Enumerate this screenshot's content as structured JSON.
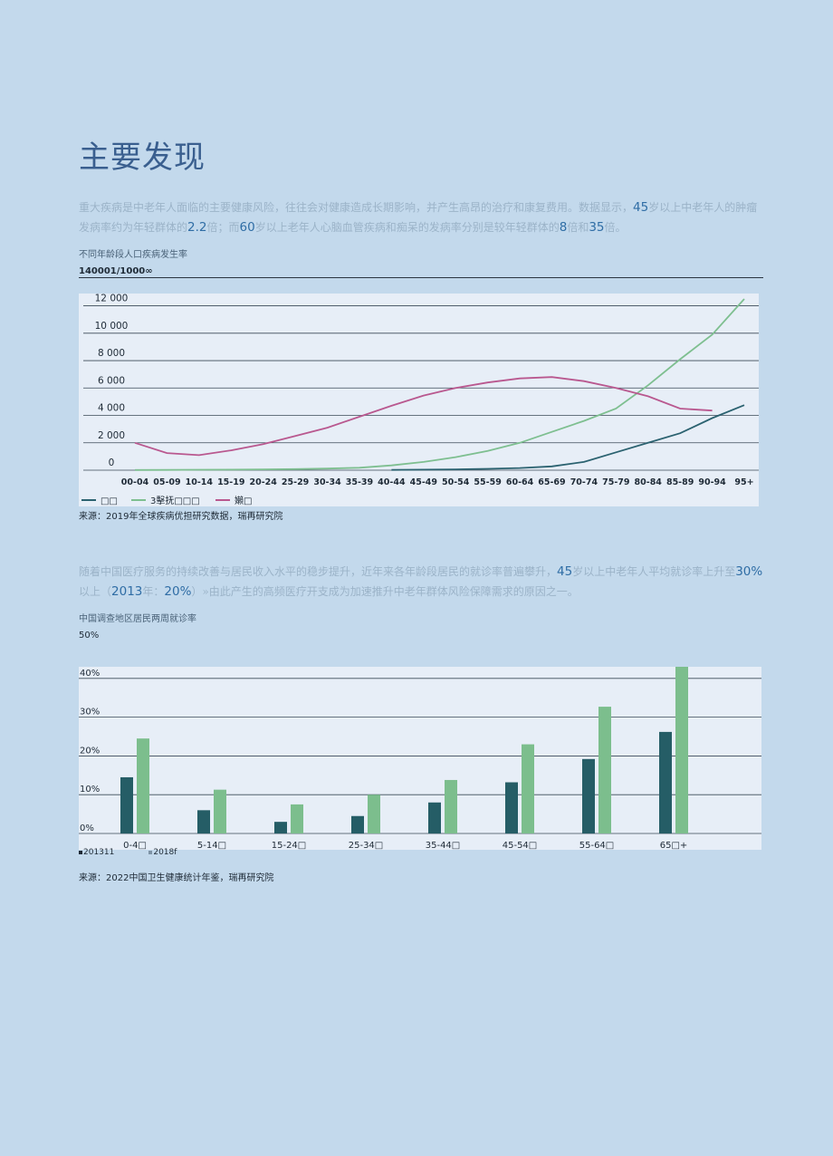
{
  "title": "主要发现",
  "paragraph1": {
    "t1": "重大疾病是中老年人面临的主要健康风险，往往会对健康造成长期影响，并产生高昂的治疗和康复费用。数据显示，",
    "h1": "45",
    "t2": "岁以上中老年人的肿瘤发病率约为年轻群体的",
    "h2": "2.2",
    "t3": "倍；而",
    "h3": "60",
    "t4": "岁以上老年人心脑血管疾病和痴呆的发病率分别是较年轻群体的",
    "h4": "8",
    "t5": "倍和",
    "h5": "35",
    "t6": "倍。"
  },
  "chart1_block": {
    "caption": "不同年龄段人口疾病发生率",
    "unit": "140001/1000∞",
    "source": "来源：2019年全球疾病优担研究数据，瑞再研究院"
  },
  "paragraph2": {
    "t1": "随着中国医疗服务的持续改善与居民收入水平的稳步提升，近年来各年龄段居民的就诊率普遍攀升，",
    "h1": "45",
    "t2": "岁以上中老年人平均就诊率上升至",
    "h2": "30%",
    "t3": "以上（",
    "h3": "2013",
    "t4": "年：",
    "h4": "20%",
    "t5": "）»由此产生的高频医疗开支成为加速推升中老年群体风险保障需求的原因之一。"
  },
  "chart2_block": {
    "caption": "中国调查地区居民两周就诊率",
    "unit": "50%",
    "source": "来源：2022中国卫生健康统计年鉴，瑞再研究院"
  },
  "colors": {
    "series_dark": "#2b6270",
    "series_green": "#7ebf90",
    "series_pink": "#b9588f",
    "grid": "#3b4a57",
    "bar_dark": "#255d66",
    "bar_green": "#7cbe8d"
  },
  "chart_data": [
    {
      "type": "line",
      "title": "不同年龄段人口疾病发生率",
      "categories": [
        "00-04",
        "05-09",
        "10-14",
        "15-19",
        "20-24",
        "25-29",
        "30-34",
        "35-39",
        "40-44",
        "45-49",
        "50-54",
        "55-59",
        "60-64",
        "65-69",
        "70-74",
        "75-79",
        "80-84",
        "85-89",
        "90-94",
        "95+"
      ],
      "y_ticks": [
        "0",
        "2 000",
        "4 000",
        "6 000",
        "8 000",
        "10 000",
        "12 000"
      ],
      "ylim": [
        0,
        12500
      ],
      "grid": true,
      "legend": "bottom-left",
      "series": [
        {
          "name": "□□",
          "values": [
            null,
            null,
            null,
            null,
            null,
            null,
            null,
            null,
            20,
            40,
            60,
            100,
            160,
            280,
            600,
            1300,
            2000,
            2700,
            3800,
            4750
          ]
        },
        {
          "name": "3擊抚□□□",
          "values": [
            10,
            20,
            30,
            40,
            60,
            80,
            120,
            180,
            350,
            600,
            950,
            1400,
            2000,
            2800,
            3600,
            4500,
            6200,
            8100,
            9900,
            12500
          ]
        },
        {
          "name": "嬾□",
          "values": [
            2000,
            1250,
            1100,
            1450,
            1900,
            2500,
            3100,
            3900,
            4700,
            5450,
            6000,
            6400,
            6700,
            6800,
            6500,
            6000,
            5400,
            4500,
            4350,
            null
          ]
        }
      ]
    },
    {
      "type": "bar",
      "title": "中国调查地区居民两周就诊率",
      "categories": [
        "0-4□",
        "5-14□",
        "15-24□",
        "25-34□",
        "35-44□",
        "45-54□",
        "55-64□",
        "65□+"
      ],
      "y_ticks": [
        "0%",
        "10%",
        "20%",
        "30%",
        "40%"
      ],
      "ylim": [
        0,
        43
      ],
      "grid": true,
      "legend": "bottom-left",
      "series": [
        {
          "name": "201311",
          "values": [
            14.5,
            6,
            3,
            4.5,
            8,
            13.2,
            19.2,
            26.2
          ]
        },
        {
          "name": "2018f",
          "values": [
            24.5,
            11.3,
            7.5,
            10,
            13.8,
            23,
            32.7,
            43
          ]
        }
      ]
    }
  ]
}
